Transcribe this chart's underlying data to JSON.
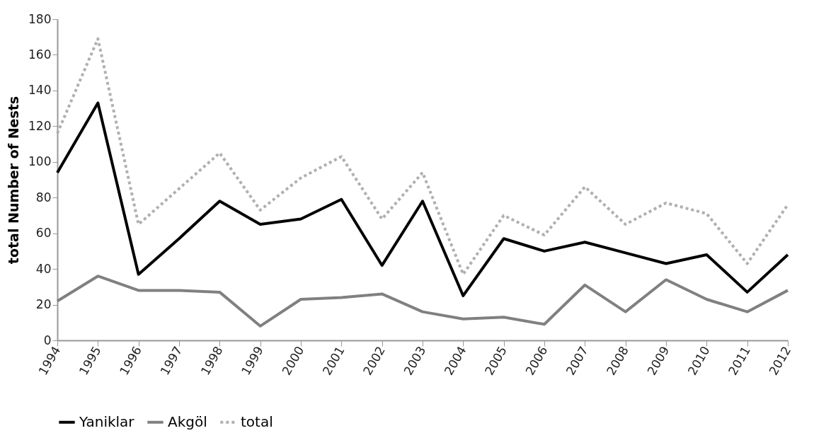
{
  "chart_data": {
    "type": "line",
    "ylabel": "total Number of Nests",
    "categories": [
      "1994",
      "1995",
      "1996",
      "1997",
      "1998",
      "1999",
      "2000",
      "2001",
      "2002",
      "2003",
      "2004",
      "2005",
      "2006",
      "2007",
      "2008",
      "2009",
      "2010",
      "2011",
      "2012"
    ],
    "series": [
      {
        "name": "Yaniklar",
        "color": "#000000",
        "line_style": "solid",
        "values": [
          94,
          133,
          37,
          57,
          78,
          65,
          68,
          79,
          42,
          78,
          25,
          57,
          50,
          55,
          49,
          43,
          48,
          27,
          48
        ]
      },
      {
        "name": "Akgöl",
        "color": "#808080",
        "line_style": "solid",
        "values": [
          22,
          36,
          28,
          28,
          27,
          8,
          23,
          24,
          26,
          16,
          12,
          13,
          9,
          31,
          16,
          34,
          23,
          16,
          28
        ]
      },
      {
        "name": "total",
        "color": "#b0b0b0",
        "line_style": "dotted",
        "values": [
          116,
          169,
          65,
          85,
          105,
          73,
          91,
          103,
          68,
          94,
          37,
          70,
          59,
          86,
          65,
          77,
          71,
          43,
          76
        ]
      }
    ],
    "ylim": [
      0,
      180
    ],
    "yticks": [
      0,
      20,
      40,
      60,
      80,
      100,
      120,
      140,
      160,
      180
    ],
    "grid": false,
    "legend": "bottom"
  }
}
